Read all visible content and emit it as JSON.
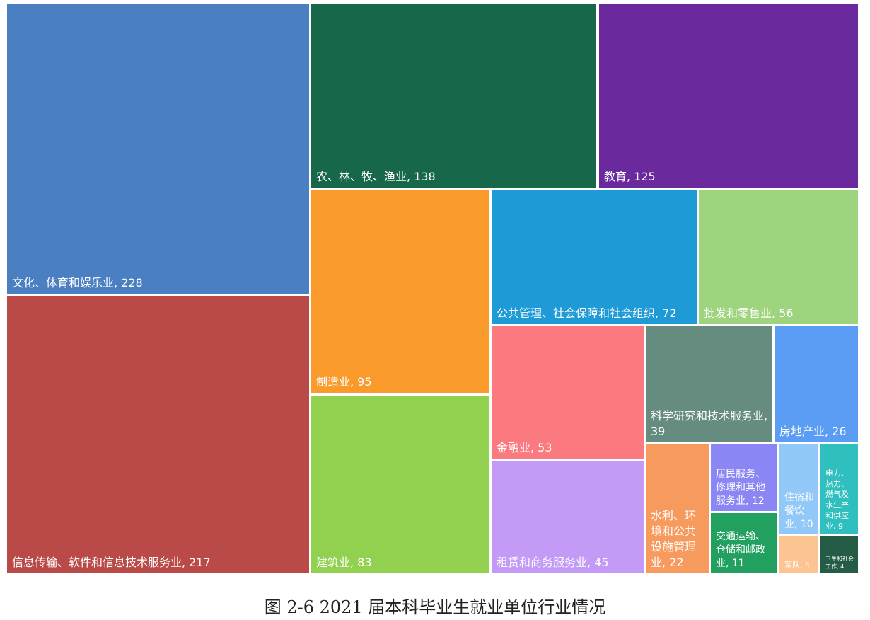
{
  "chart_data": {
    "type": "treemap",
    "title": "图 2-6   2021 届本科毕业生就业单位行业情况",
    "items": [
      {
        "name": "文化、体育和娱乐业",
        "value": 228,
        "color": "#4a7fc1"
      },
      {
        "name": "信息传输、软件和信息技术服务业",
        "value": 217,
        "color": "#b94a47"
      },
      {
        "name": "农、林、牧、渔业",
        "value": 138,
        "color": "#17684a"
      },
      {
        "name": "教育",
        "value": 125,
        "color": "#6a2a9e"
      },
      {
        "name": "制造业",
        "value": 95,
        "color": "#f99a2a"
      },
      {
        "name": "建筑业",
        "value": 83,
        "color": "#92d04f"
      },
      {
        "name": "公共管理、社会保障和社会组织",
        "value": 72,
        "color": "#1e9ad6"
      },
      {
        "name": "批发和零售业",
        "value": 56,
        "color": "#9ed47d"
      },
      {
        "name": "金融业",
        "value": 53,
        "color": "#fa7a80"
      },
      {
        "name": "租赁和商务服务业",
        "value": 45,
        "color": "#c39af5"
      },
      {
        "name": "科学研究和技术服务业",
        "value": 39,
        "color": "#658c7e"
      },
      {
        "name": "房地产业",
        "value": 26,
        "color": "#5b9cf5"
      },
      {
        "name": "水利、环境和公共设施管理业",
        "value": 22,
        "color": "#f79a5e"
      },
      {
        "name": "居民服务、修理和其他服务业",
        "value": 12,
        "color": "#8a87f5"
      },
      {
        "name": "交通运输、仓储和邮政业",
        "value": 11,
        "color": "#22a060"
      },
      {
        "name": "住宿和餐饮业",
        "value": 10,
        "color": "#92c8f7"
      },
      {
        "name": "电力、热力、燃气及水生产和供应业",
        "value": 9,
        "color": "#2fbfbf"
      },
      {
        "name": "军队",
        "value": 4,
        "color": "#fcc490"
      },
      {
        "name": "卫生和社会工作",
        "value": 4,
        "color": "#245c45"
      }
    ]
  }
}
